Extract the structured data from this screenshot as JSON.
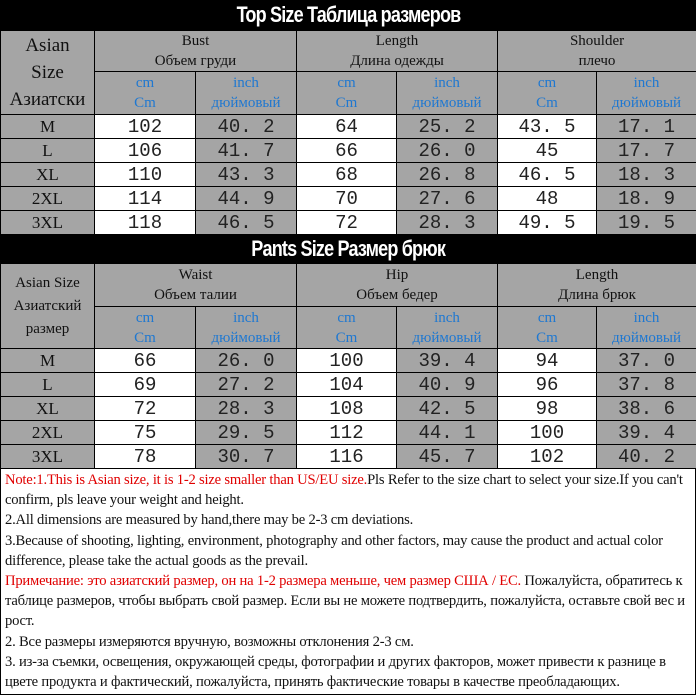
{
  "top": {
    "title": "Top Size    Таблица размеров",
    "size_header": [
      "Asian",
      "Size",
      "Азиатски"
    ],
    "groups": [
      {
        "en": "Bust",
        "ru": "Объем груди"
      },
      {
        "en": "Length",
        "ru": "Длина одежды"
      },
      {
        "en": "Shoulder",
        "ru": "плечо"
      }
    ],
    "units": {
      "cm1": "cm",
      "cm2": "Cm",
      "in1": "inch",
      "in2": "дюймовый"
    },
    "rows": [
      {
        "size": "M",
        "values": [
          "102",
          "40. 2",
          "64",
          "25. 2",
          "43. 5",
          "17. 1"
        ]
      },
      {
        "size": "L",
        "values": [
          "106",
          "41. 7",
          "66",
          "26. 0",
          "45",
          "17. 7"
        ]
      },
      {
        "size": "XL",
        "values": [
          "110",
          "43. 3",
          "68",
          "26. 8",
          "46. 5",
          "18. 3"
        ]
      },
      {
        "size": "2XL",
        "values": [
          "114",
          "44. 9",
          "70",
          "27. 6",
          "48",
          "18. 9"
        ]
      },
      {
        "size": "3XL",
        "values": [
          "118",
          "46. 5",
          "72",
          "28. 3",
          "49. 5",
          "19. 5"
        ]
      }
    ]
  },
  "pants": {
    "title": "Pants Size    Размер брюк",
    "size_header": [
      "Asian Size",
      "Азиатский",
      "размер"
    ],
    "groups": [
      {
        "en": "Waist",
        "ru": "Объем талии"
      },
      {
        "en": "Hip",
        "ru": "Объем бедер"
      },
      {
        "en": "Length",
        "ru": "Длина брюк"
      }
    ],
    "units": {
      "cm1": "cm",
      "cm2": "Cm",
      "in1": "inch",
      "in2": "дюймовый"
    },
    "rows": [
      {
        "size": "M",
        "values": [
          "66",
          "26. 0",
          "100",
          "39. 4",
          "94",
          "37. 0"
        ]
      },
      {
        "size": "L",
        "values": [
          "69",
          "27. 2",
          "104",
          "40. 9",
          "96",
          "37. 8"
        ]
      },
      {
        "size": "XL",
        "values": [
          "72",
          "28. 3",
          "108",
          "42. 5",
          "98",
          "38. 6"
        ]
      },
      {
        "size": "2XL",
        "values": [
          "75",
          "29. 5",
          "112",
          "44. 1",
          "100",
          "39. 4"
        ]
      },
      {
        "size": "3XL",
        "values": [
          "78",
          "30. 7",
          "116",
          "45. 7",
          "102",
          "40. 2"
        ]
      }
    ]
  },
  "notes": {
    "en1_red": "Note:1.This is Asian size, it is 1-2 size smaller than US/EU size.",
    "en1_rest": "Pls Refer to the size chart to select your size.If you can't confirm, pls leave your weight and height.",
    "en2": "2.All dimensions are measured by hand,there may be 2-3 cm deviations.",
    "en3": "3.Because of shooting, lighting, environment, photography and other factors, may cause the product and actual color difference, please take the actual goods as the prevail.",
    "ru1_red": "Примечание: это азиатский размер, он на 1-2 размера меньше, чем размер США / ЕС.",
    "ru1_rest": " Пожалуйста, обратитесь к таблице размеров, чтобы выбрать свой размер. Если вы не можете подтвердить, пожалуйста, оставьте свой вес и рост.",
    "ru2": "2. Все размеры измеряются вручную, возможны отклонения 2-3 см.",
    "ru3": "3. из-за съемки, освещения, окружающей среды, фотографии и других факторов, может привести к разнице в цвете продукта и фактический, пожалуйста, принять фактические товары в качестве преобладающих."
  },
  "colors": {
    "header_gray": "#a5a5a5",
    "unit_blue": "#1f78d1",
    "note_red": "#e00000",
    "title_bg": "#000000"
  }
}
